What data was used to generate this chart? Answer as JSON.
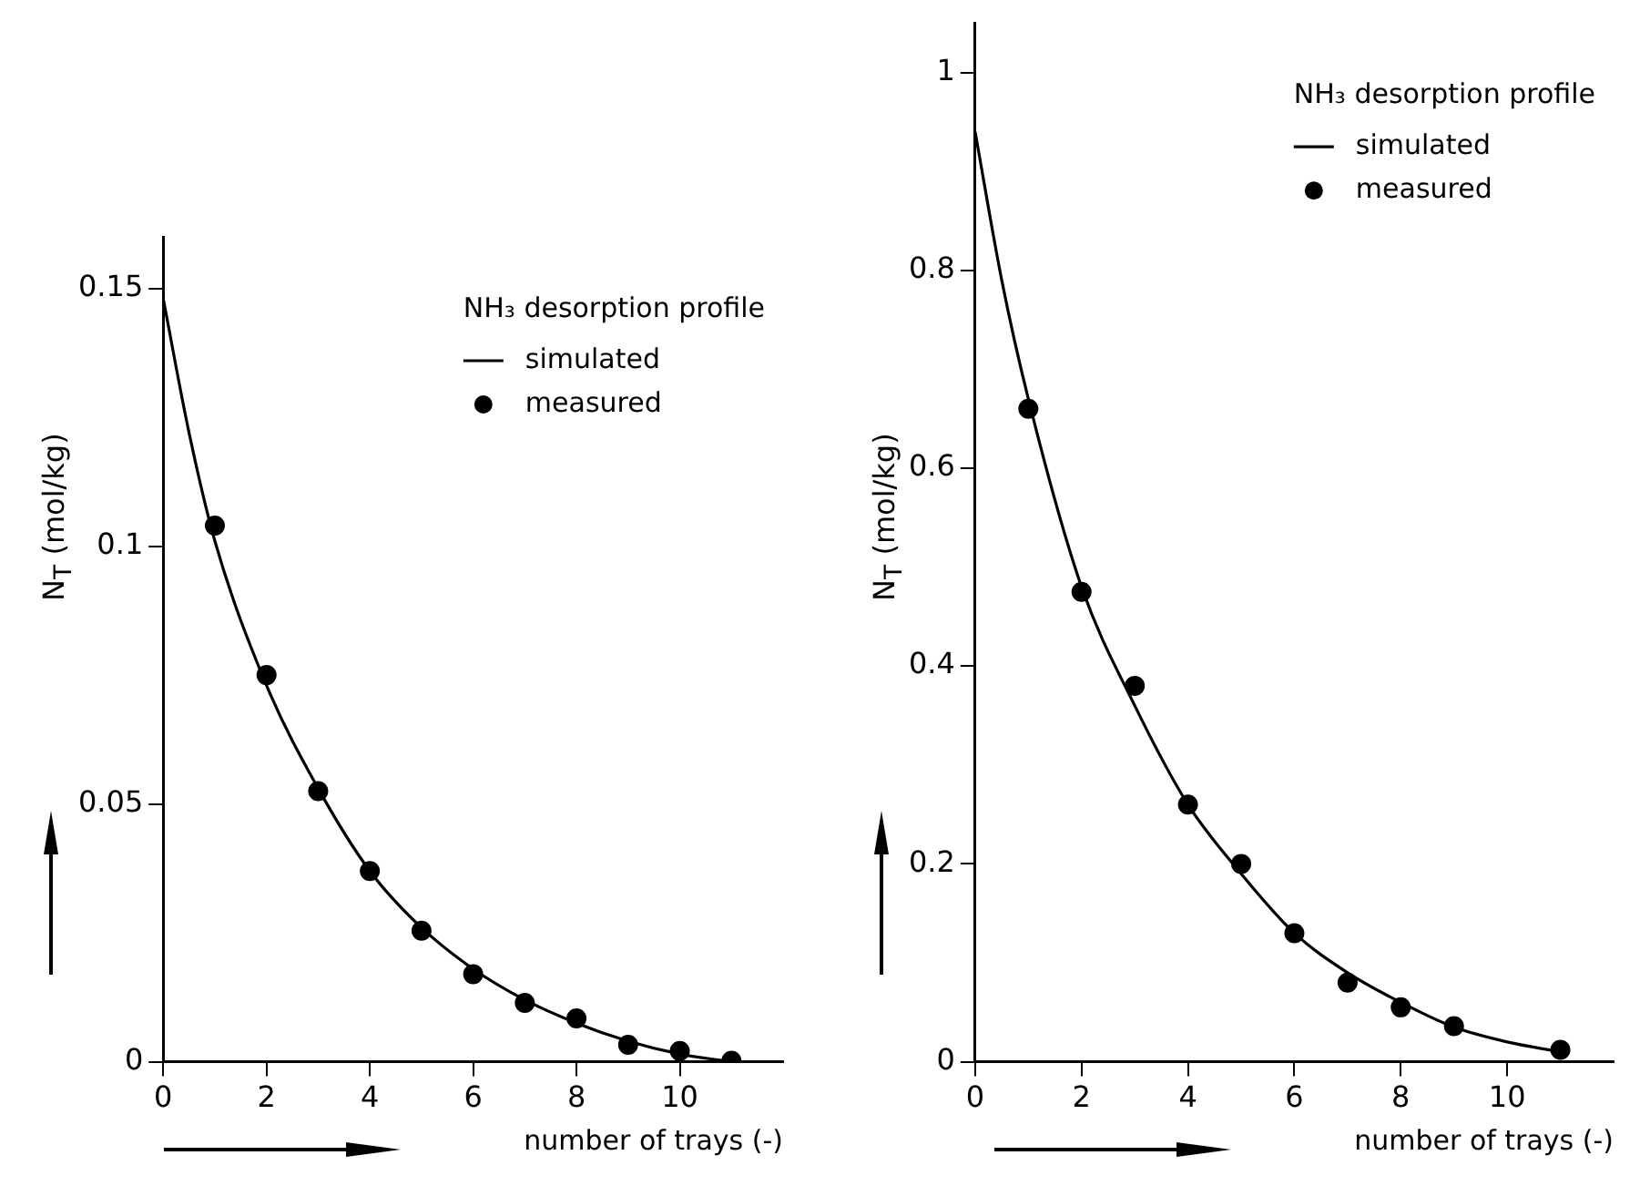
{
  "chart_data": [
    {
      "type": "scatter",
      "legend_title": "NH₃ desorption profile",
      "xlabel": "number of trays (-)",
      "ylabel": "N$_{T}$ (mol/kg)",
      "xlim": [
        0,
        12
      ],
      "ylim": [
        0,
        0.16
      ],
      "xticks": [
        0,
        2,
        4,
        6,
        8,
        10
      ],
      "yticks": [
        0,
        0.05,
        0.1,
        0.15
      ],
      "grid": false,
      "legend": "top right",
      "series": [
        {
          "name": "simulated",
          "type": "line",
          "marker": "none",
          "line_style": "solid",
          "color": "#000000",
          "x": [
            0,
            0.5,
            1,
            2,
            3,
            4,
            5,
            6,
            7,
            8,
            9,
            10,
            11
          ],
          "values": [
            0.148,
            0.122,
            0.101,
            0.073,
            0.053,
            0.037,
            0.026,
            0.018,
            0.012,
            0.0075,
            0.004,
            0.0015,
            0
          ]
        },
        {
          "name": "measured",
          "type": "scatter",
          "marker": "circle",
          "color": "#000000",
          "x": [
            1,
            2,
            3,
            4,
            5,
            6,
            7,
            8,
            9,
            10,
            11
          ],
          "values": [
            0.104,
            0.075,
            0.0525,
            0.037,
            0.0254,
            0.017,
            0.0114,
            0.0084,
            0.0033,
            0.0021,
            0.0002
          ]
        }
      ]
    },
    {
      "type": "scatter",
      "legend_title": "NH₃ desorption profile",
      "xlabel": "number of trays (-)",
      "ylabel": "N$_{T}$ (mol/kg)",
      "xlim": [
        0,
        12
      ],
      "ylim": [
        0,
        1.05
      ],
      "xticks": [
        0,
        2,
        4,
        6,
        8,
        10
      ],
      "yticks": [
        0,
        0.2,
        0.4,
        0.6,
        0.8,
        1.0
      ],
      "grid": false,
      "legend": "top right",
      "series": [
        {
          "name": "simulated",
          "type": "line",
          "marker": "none",
          "line_style": "solid",
          "color": "#000000",
          "x": [
            0,
            0.5,
            1,
            2,
            3,
            4,
            5,
            6,
            7,
            8,
            9,
            10,
            11
          ],
          "values": [
            0.94,
            0.79,
            0.67,
            0.48,
            0.36,
            0.26,
            0.19,
            0.13,
            0.09,
            0.06,
            0.035,
            0.02,
            0.01
          ]
        },
        {
          "name": "measured",
          "type": "scatter",
          "marker": "circle",
          "color": "#000000",
          "x": [
            1,
            2,
            3,
            4,
            5,
            6,
            7,
            8,
            9,
            11
          ],
          "values": [
            0.66,
            0.475,
            0.38,
            0.26,
            0.2,
            0.13,
            0.08,
            0.055,
            0.036,
            0.012
          ]
        }
      ]
    }
  ]
}
